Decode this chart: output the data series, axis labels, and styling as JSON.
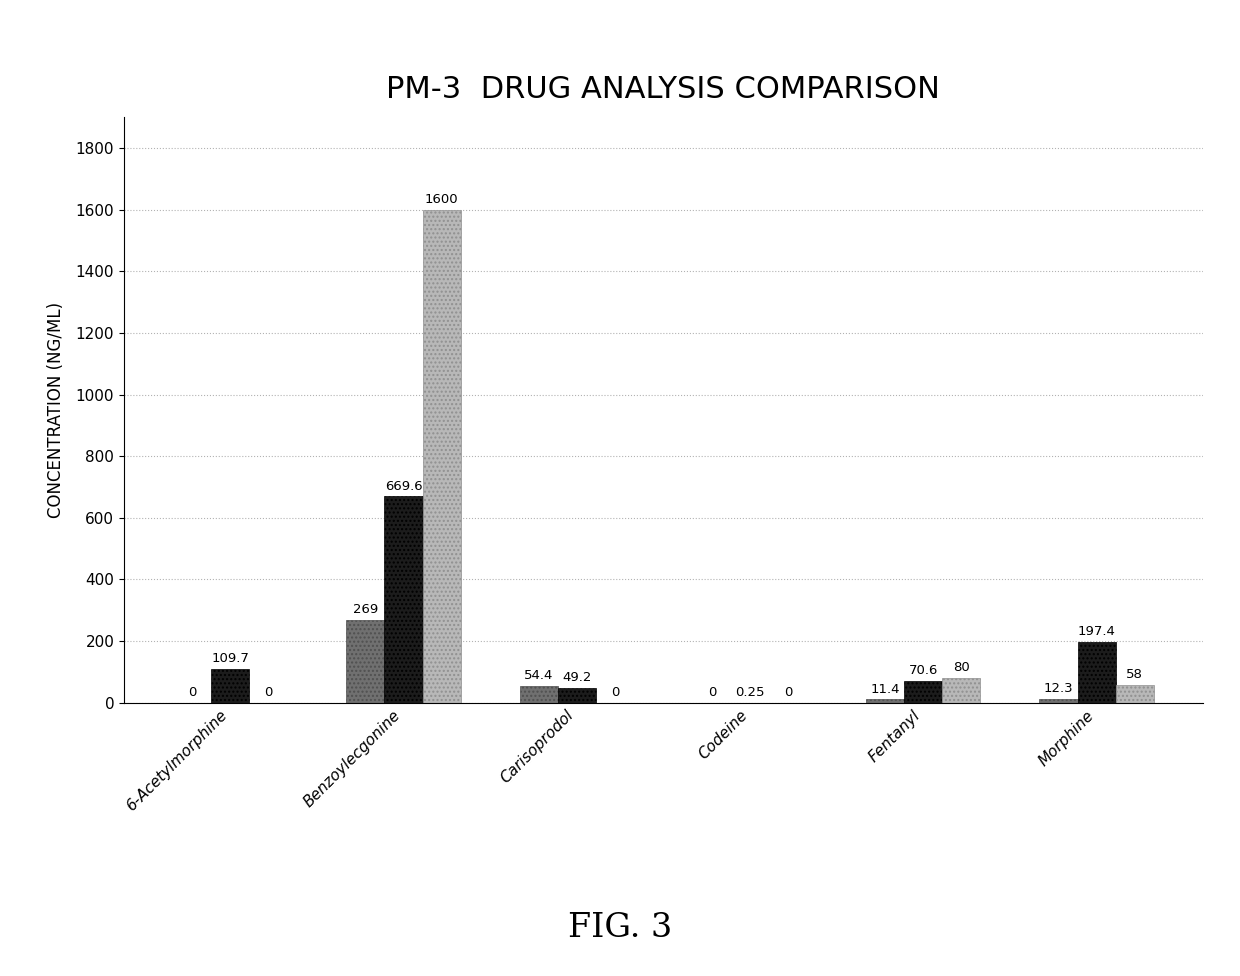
{
  "title": "PM-3  DRUG ANALYSIS COMPARISON",
  "ylabel": "CONCENTRATION (NG/ML)",
  "fig_label": "FIG. 3",
  "categories": [
    "6-Acetylmorphine",
    "Benzoylecgonine",
    "Carisoprodol",
    "Codeine",
    "Fentanyl",
    "Morphine"
  ],
  "series": {
    "1SM": [
      0,
      269.0,
      54.4,
      0,
      11.4,
      12.3
    ],
    "1SL": [
      109.7,
      669.6,
      49.2,
      0.25,
      70.6,
      197.4
    ],
    "LAB X": [
      0,
      1600,
      0,
      0,
      80,
      58
    ]
  },
  "bar_colors": {
    "1SM": "#707070",
    "1SL": "#1c1c1c",
    "LAB X": "#b8b8b8"
  },
  "bar_hatches": {
    "1SM": "....",
    "1SL": "....",
    "LAB X": "...."
  },
  "bar_edgecolors": {
    "1SM": "#505050",
    "1SL": "#000000",
    "LAB X": "#909090"
  },
  "ylim": [
    0,
    1900
  ],
  "yticks": [
    0,
    200,
    400,
    600,
    800,
    1000,
    1200,
    1400,
    1600,
    1800
  ],
  "background_color": "#ffffff",
  "title_fontsize": 22,
  "axis_label_fontsize": 12,
  "tick_fontsize": 11,
  "legend_fontsize": 11,
  "annotation_fontsize": 9.5,
  "bar_width": 0.22
}
